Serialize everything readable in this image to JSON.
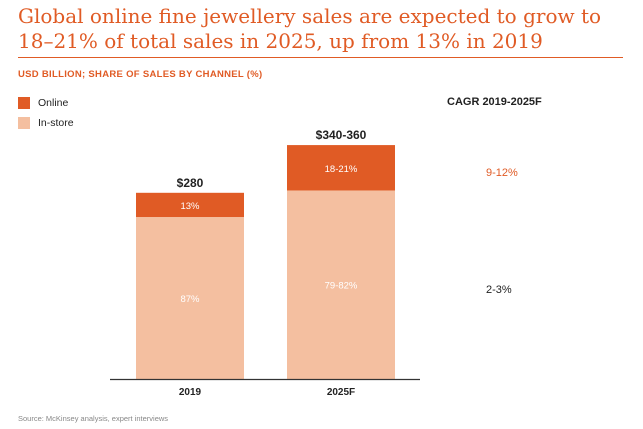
{
  "title": "Global online fine jewellery sales are expected to grow to 18–21% of total sales in 2025, up from 13% in 2019",
  "subtitle": "USD BILLION; SHARE OF SALES BY CHANNEL (%)",
  "source": "Source: McKinsey analysis, expert interviews",
  "colors": {
    "online": "#e05b25",
    "instore": "#f4bfa0",
    "accent": "#e05b25"
  },
  "legend": [
    {
      "name": "Online",
      "color": "#e05b25"
    },
    {
      "name": "In-store",
      "color": "#f4bfa0"
    }
  ],
  "cagr": {
    "title": "CAGR 2019-2025F",
    "online": "9-12%",
    "instore": "2-3%"
  },
  "chart_data": {
    "type": "bar",
    "stacked": true,
    "categories": [
      "2019",
      "2025F"
    ],
    "totals": [
      280,
      350
    ],
    "total_labels": [
      "$280",
      "$340-360"
    ],
    "series": [
      {
        "name": "In-store",
        "values": [
          243.6,
          283.5
        ],
        "labels": [
          "87%",
          "79-82%"
        ]
      },
      {
        "name": "Online",
        "values": [
          36.4,
          68.25
        ],
        "labels": [
          "13%",
          "18-21%"
        ]
      }
    ],
    "ylim": [
      0,
      380
    ],
    "legend_position": "top-left",
    "grid": false
  }
}
